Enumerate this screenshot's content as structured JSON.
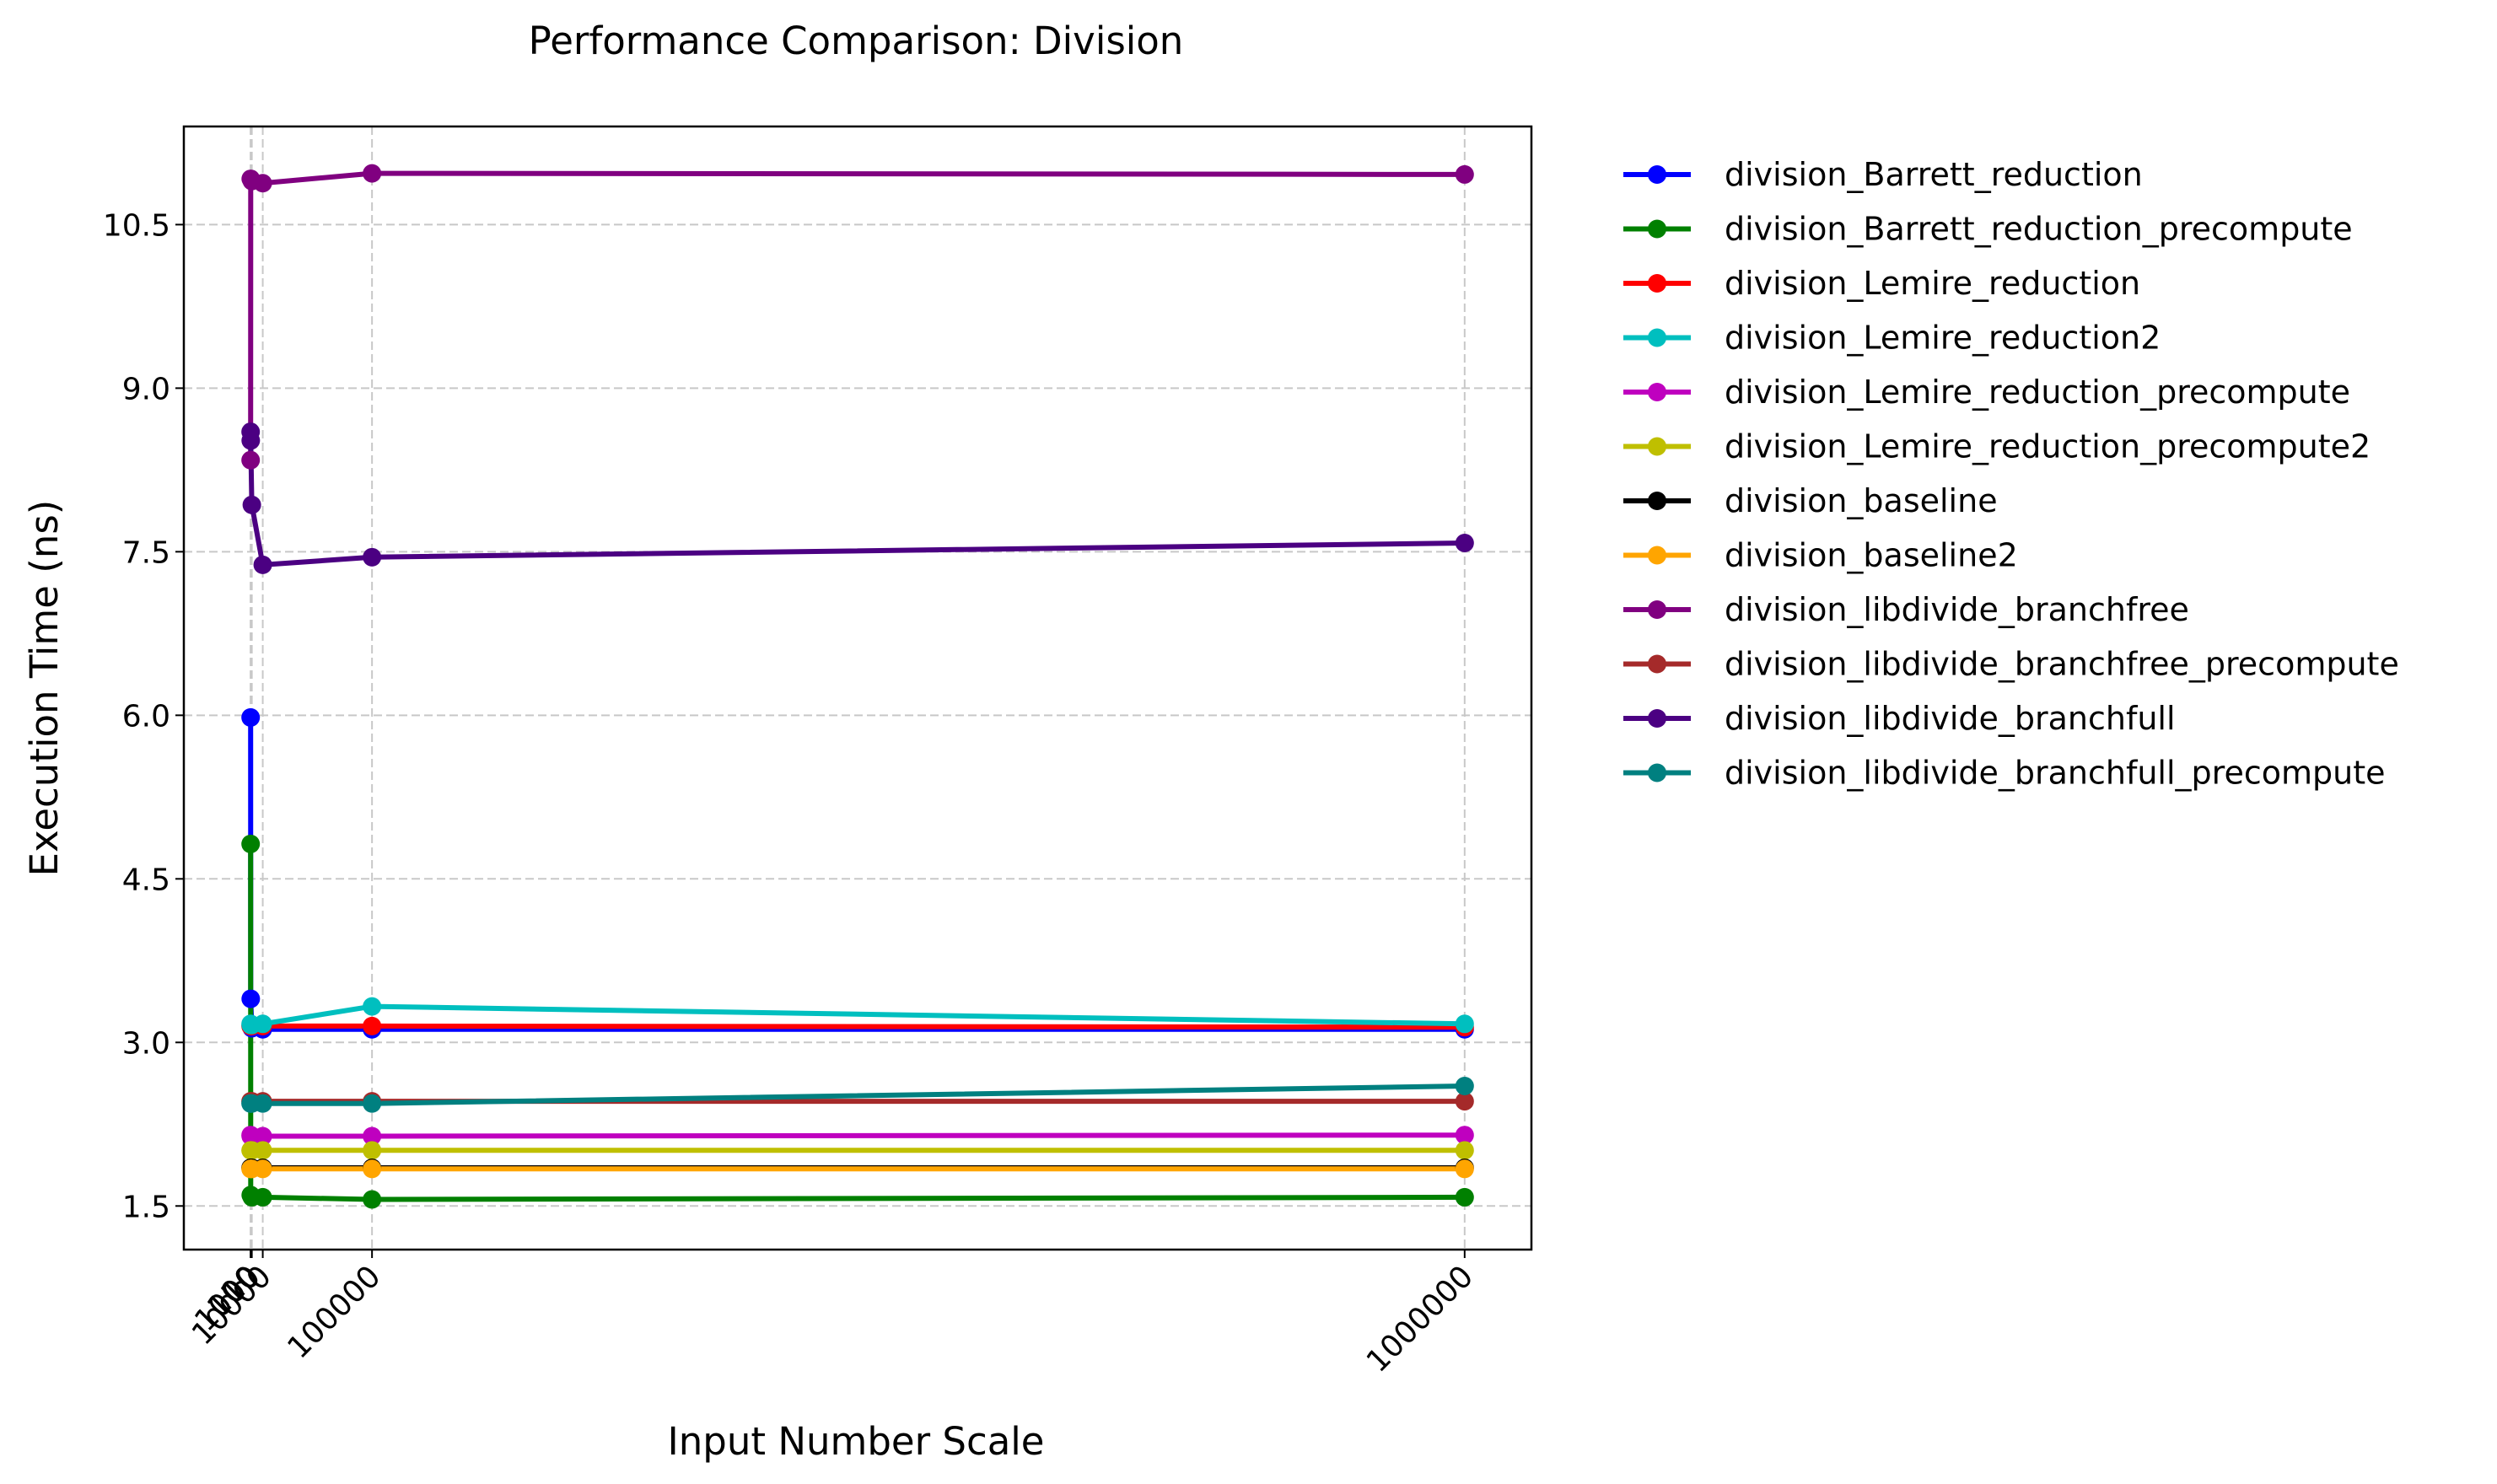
{
  "chart_data": {
    "type": "line",
    "title": "Performance Comparison: Division",
    "xlabel": "Input Number Scale",
    "ylabel": "Execution Time (ns)",
    "x": [
      10,
      100,
      1000,
      10000,
      100000,
      1000000
    ],
    "x_tick_labels": [
      "10",
      "100",
      "1000",
      "10000",
      "100000",
      "1000000"
    ],
    "xlim": [
      -55000,
      1055000
    ],
    "y_ticks": [
      1.5,
      3.0,
      4.5,
      6.0,
      7.5,
      9.0,
      10.5
    ],
    "y_tick_labels": [
      "1.5",
      "3.0",
      "4.5",
      "6.0",
      "7.5",
      "9.0",
      "10.5"
    ],
    "ylim": [
      1.1,
      11.4
    ],
    "grid": true,
    "legend_position": "outside-right",
    "series": [
      {
        "name": "division_Barrett_reduction",
        "color": "#0000ff",
        "values": [
          5.98,
          3.4,
          3.13,
          3.12,
          3.12,
          3.12
        ]
      },
      {
        "name": "division_Barrett_reduction_precompute",
        "color": "#008000",
        "values": [
          4.82,
          1.6,
          1.58,
          1.58,
          1.56,
          1.58
        ]
      },
      {
        "name": "division_Lemire_reduction",
        "color": "#ff0000",
        "values": [
          3.15,
          3.15,
          3.15,
          3.15,
          3.15,
          3.14
        ]
      },
      {
        "name": "division_Lemire_reduction2",
        "color": "#00bfbf",
        "values": [
          3.17,
          3.16,
          3.16,
          3.17,
          3.33,
          3.17
        ]
      },
      {
        "name": "division_Lemire_reduction_precompute",
        "color": "#bf00bf",
        "values": [
          2.15,
          2.14,
          2.14,
          2.14,
          2.14,
          2.15
        ]
      },
      {
        "name": "division_Lemire_reduction_precompute2",
        "color": "#bfbf00",
        "values": [
          2.01,
          2.01,
          2.01,
          2.01,
          2.01,
          2.01
        ]
      },
      {
        "name": "division_baseline",
        "color": "#000000",
        "values": [
          1.85,
          1.85,
          1.85,
          1.85,
          1.85,
          1.85
        ]
      },
      {
        "name": "division_baseline2",
        "color": "#ffa500",
        "values": [
          1.84,
          1.84,
          1.84,
          1.84,
          1.84,
          1.84
        ]
      },
      {
        "name": "division_libdivide_branchfree",
        "color": "#800080",
        "values": [
          8.34,
          10.92,
          10.9,
          10.88,
          10.97,
          10.96
        ]
      },
      {
        "name": "division_libdivide_branchfree_precompute",
        "color": "#a52a2a",
        "values": [
          2.46,
          2.46,
          2.46,
          2.46,
          2.46,
          2.46
        ]
      },
      {
        "name": "division_libdivide_branchfull",
        "color": "#4b0082",
        "values": [
          8.6,
          8.52,
          7.93,
          7.38,
          7.45,
          7.58
        ]
      },
      {
        "name": "division_libdivide_branchfull_precompute",
        "color": "#008080",
        "values": [
          2.44,
          2.44,
          2.44,
          2.44,
          2.44,
          2.6
        ]
      }
    ]
  }
}
